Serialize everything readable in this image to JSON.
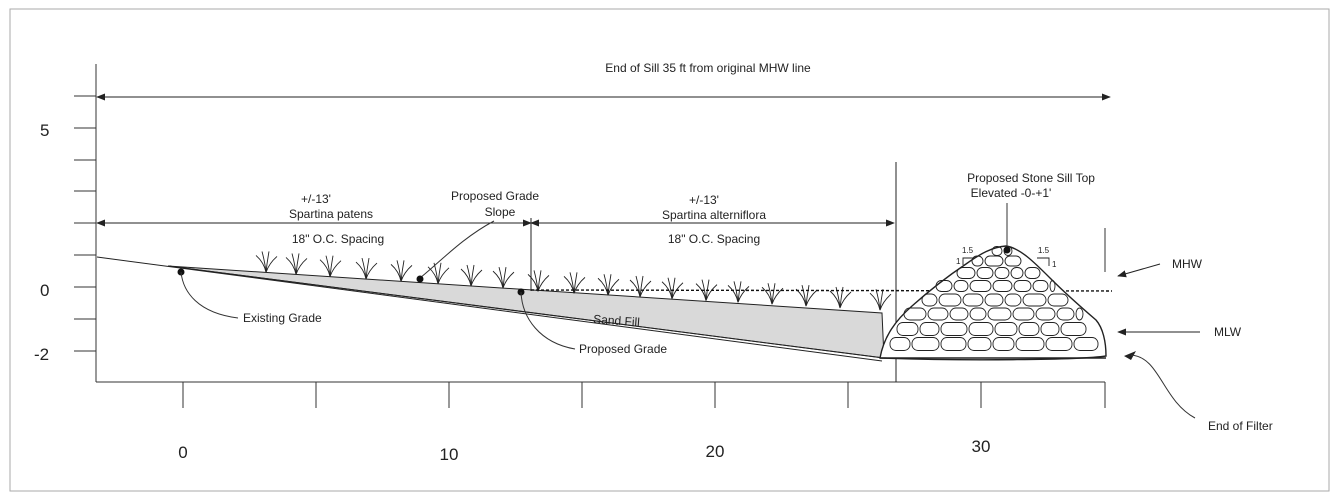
{
  "y_axis": {
    "tick_labels": [
      "5",
      "0",
      "-2"
    ]
  },
  "x_axis": {
    "tick_labels": [
      "0",
      "10",
      "20",
      "30"
    ]
  },
  "labels": {
    "sill_distance": "End of Sill 35 ft from original MHW line",
    "patens_width": "+/-13'",
    "patens_species": "Spartina patens",
    "patens_spacing": "18\" O.C. Spacing",
    "grade_slope_line1": "Proposed Grade",
    "grade_slope_line2": "Slope",
    "alterniflora_width": "+/-13'",
    "alterniflora_species": "Spartina alterniflora",
    "alterniflora_spacing": "18\" O.C. Spacing",
    "sill_top_line1": "Proposed Stone Sill Top",
    "sill_top_line2": "Elevated -0-+1'",
    "existing_grade": "Existing Grade",
    "proposed_grade": "Proposed Grade",
    "sand_fill": "Sand Fill",
    "mhw": "MHW",
    "mlw": "MLW",
    "end_of_filter": "End of Filter",
    "slope_left_run": "1.5",
    "slope_left_rise": "1",
    "slope_right_run": "1.5",
    "slope_right_rise": "1"
  }
}
